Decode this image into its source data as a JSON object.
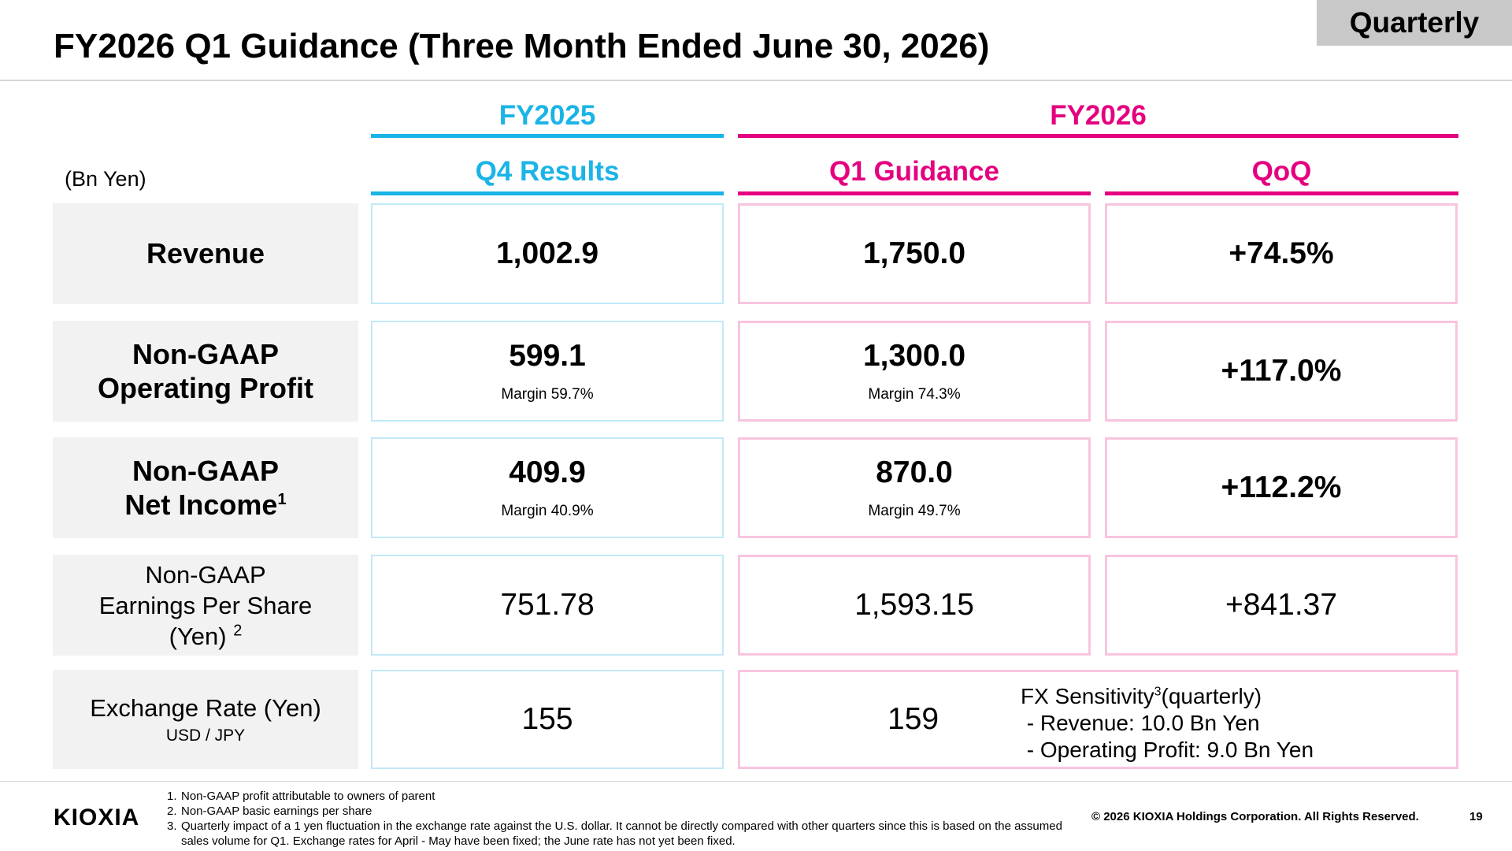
{
  "badge": "Quarterly",
  "title": "FY2026 Q1 Guidance (Three Month Ended June 30, 2026)",
  "unit": "(Bn Yen)",
  "headers": {
    "fy2025": "FY2025",
    "fy2026": "FY2026",
    "col1": "Q4 Results",
    "col2": "Q1 Guidance",
    "col3": "QoQ"
  },
  "rows": {
    "revenue": {
      "label": "Revenue",
      "q4": "1,002.9",
      "q1": "1,750.0",
      "qoq": "+74.5%"
    },
    "op": {
      "label_line1": "Non-GAAP",
      "label_line2": "Operating Profit",
      "q4": "599.1",
      "q4_margin": "Margin 59.7%",
      "q1": "1,300.0",
      "q1_margin": "Margin 74.3%",
      "qoq": "+117.0%"
    },
    "ni": {
      "label_line1": "Non-GAAP",
      "label_line2": "Net Income",
      "label_sup": "1",
      "q4": "409.9",
      "q4_margin": "Margin 40.9%",
      "q1": "870.0",
      "q1_margin": "Margin 49.7%",
      "qoq": "+112.2%"
    },
    "eps": {
      "label_line1": "Non-GAAP",
      "label_line2": "Earnings Per Share",
      "label_line3": "(Yen) ",
      "label_sup": "2",
      "q4": "751.78",
      "q1": "1,593.15",
      "qoq": "+841.37"
    },
    "fx": {
      "label": "Exchange Rate (Yen)",
      "sublabel": "USD / JPY",
      "q4": "155",
      "q1": "159",
      "note_title": "FX Sensitivity",
      "note_sup": "3",
      "note_title_suffix": "(quarterly)",
      "note_line1": " - Revenue: 10.0 Bn Yen",
      "note_line2": " - Operating Profit: 9.0 Bn Yen"
    }
  },
  "footnotes": [
    {
      "n": "1.",
      "text": "Non-GAAP profit attributable to owners of parent"
    },
    {
      "n": "2.",
      "text": "Non-GAAP basic earnings per share"
    },
    {
      "n": "3.",
      "text": "Quarterly impact of a 1 yen fluctuation in the exchange rate against the U.S. dollar. It cannot be directly compared with other quarters since this is based on the assumed sales volume for Q1. Exchange rates for April - May have been fixed; the June rate has not yet been fixed."
    }
  ],
  "logo": "KIOXIA",
  "copyright": "© 2026 KIOXIA Holdings Corporation. All Rights Reserved.",
  "page_number": "19",
  "colors": {
    "fy2025": "#1ab4e6",
    "fy2026": "#e4007f",
    "label_bg": "#f2f2f2",
    "badge_bg": "#c8c8c8"
  }
}
